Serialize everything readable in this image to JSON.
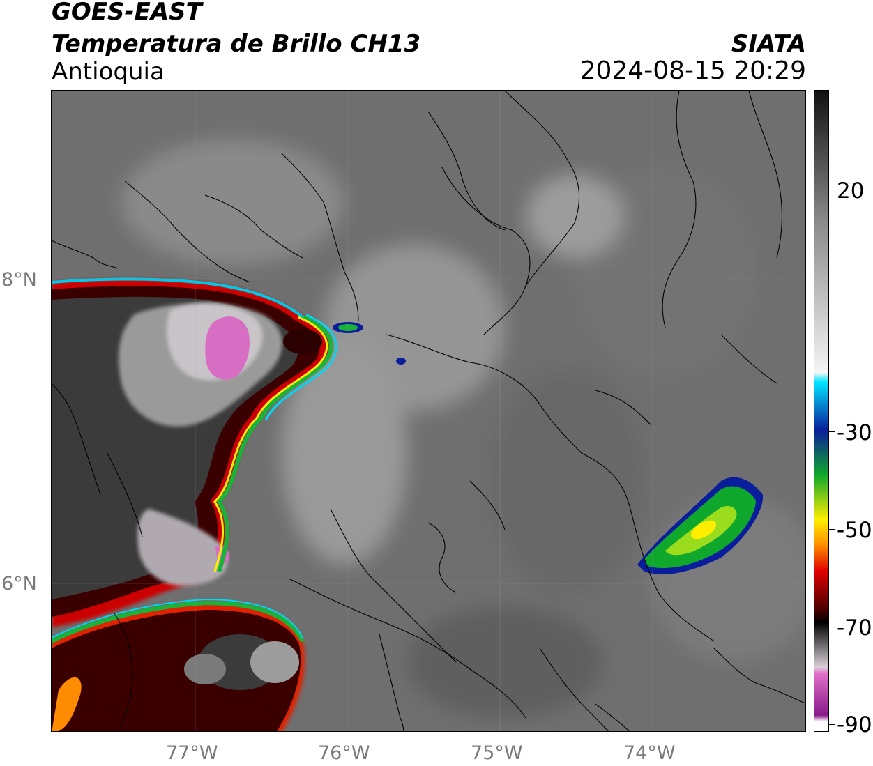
{
  "header": {
    "satellite": "GOES-EAST",
    "product": "Temperatura de Brillo CH13",
    "region": "Antioquia",
    "agency": "SIATA",
    "datetime": "2024-08-15 20:29"
  },
  "axes": {
    "lon_ticks": [
      "77°W",
      "76°W",
      "75°W",
      "74°W"
    ],
    "lat_ticks": [
      "8°N",
      "6°N"
    ]
  },
  "colorbar": {
    "labels": [
      "20",
      "-30",
      "-50",
      "-70",
      "-90"
    ],
    "colors": {
      "warm_top": "#111111",
      "gray_mid": "#888888",
      "white": "#f5f5f5",
      "cyan": "#00e5ff",
      "blue": "#0a1e9c",
      "green": "#0fa82d",
      "yellow": "#ffee00",
      "orange": "#ff8c00",
      "red": "#e00000",
      "dark_red": "#4a0000",
      "black": "#000000",
      "light_gray": "#d9d0d6",
      "magenta": "#e070c8",
      "purple": "#8a1a8a"
    }
  }
}
